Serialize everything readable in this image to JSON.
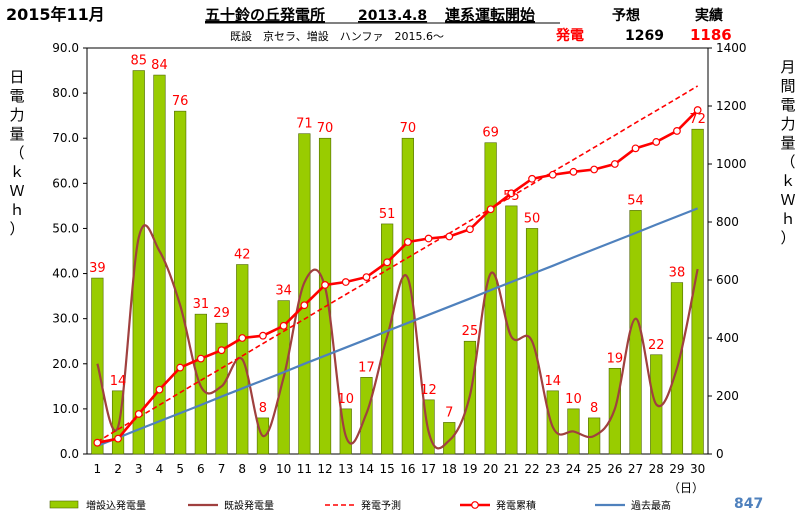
{
  "header": {
    "month": "2015年11月",
    "plant": "五十鈴の丘発電所",
    "start_date": "2013.4.8",
    "start_label": "連系運転開始",
    "forecast_label": "予想",
    "actual_label": "実績",
    "subtitle": "既設　京セラ、増設　ハンファ　2015.6～",
    "gen_label": "発電",
    "forecast_value": "1269",
    "actual_value": "1186"
  },
  "axes": {
    "y_left_label": [
      "日",
      "電",
      "力",
      "量",
      "（",
      "ｋ",
      "Ｗ",
      "ｈ",
      "）"
    ],
    "y_right_label": [
      "月",
      "間",
      "電",
      "力",
      "量",
      "（",
      "ｋ",
      "Ｗ",
      "ｈ",
      "）"
    ],
    "x_unit": "（日）",
    "y_left_ticks": [
      "0.0",
      "10.0",
      "20.0",
      "30.0",
      "40.0",
      "50.0",
      "60.0",
      "70.0",
      "80.0",
      "90.0"
    ],
    "y_right_ticks": [
      "0",
      "200",
      "400",
      "600",
      "800",
      "1000",
      "1200",
      "1400"
    ]
  },
  "footer": {
    "record_value": "847"
  },
  "colors": {
    "bar": "#99CC00",
    "bar_edge": "#4D6600",
    "existing": "#A0403F",
    "forecast": "#FF0000",
    "cumulative": "#FF0000",
    "record": "#4F81BD",
    "label_red": "#FF0000",
    "record_text": "#4F81BD"
  },
  "chart_data": {
    "type": "bar",
    "x": [
      1,
      2,
      3,
      4,
      5,
      6,
      7,
      8,
      9,
      10,
      11,
      12,
      13,
      14,
      15,
      16,
      17,
      18,
      19,
      20,
      21,
      22,
      23,
      24,
      25,
      26,
      27,
      28,
      29,
      30
    ],
    "ylim_left": [
      0,
      90
    ],
    "ylim_right": [
      0,
      1400
    ],
    "grid": false,
    "legend": "bottom",
    "series": [
      {
        "name": "増設込発電量",
        "type": "bar",
        "axis": "left",
        "values": [
          39,
          14,
          85,
          84,
          76,
          31,
          29,
          42,
          8,
          34,
          71,
          70,
          10,
          17,
          51,
          70,
          12,
          7,
          25,
          69,
          55,
          50,
          14,
          10,
          8,
          19,
          54,
          22,
          38,
          72
        ],
        "labels": [
          "39",
          "14",
          "85",
          "84",
          "76",
          "31",
          "29",
          "42",
          "8",
          "34",
          "71",
          "70",
          "10",
          "17",
          "51",
          "70",
          "12",
          "7",
          "25",
          "69",
          "55",
          "50",
          "14",
          "10",
          "8",
          "19",
          "54",
          "22",
          "38",
          "72"
        ]
      },
      {
        "name": "既設発電量",
        "type": "line",
        "axis": "left",
        "values": [
          20,
          6,
          48,
          45,
          33,
          15,
          15,
          21,
          4,
          17,
          38,
          37,
          4,
          9,
          26,
          39,
          5,
          3,
          13,
          40,
          26,
          25,
          6,
          5,
          4,
          10,
          30,
          11,
          19,
          41
        ]
      },
      {
        "name": "発電予測",
        "type": "line",
        "axis": "right",
        "values": [
          42,
          85,
          127,
          169,
          212,
          254,
          296,
          338,
          381,
          423,
          465,
          508,
          550,
          592,
          635,
          677,
          719,
          761,
          804,
          846,
          888,
          930,
          973,
          1015,
          1057,
          1099,
          1142,
          1184,
          1226,
          1269
        ]
      },
      {
        "name": "発電累積",
        "type": "line",
        "axis": "right",
        "values": [
          39,
          53,
          138,
          222,
          298,
          329,
          358,
          400,
          408,
          442,
          513,
          583,
          593,
          610,
          661,
          731,
          743,
          750,
          775,
          844,
          899,
          949,
          963,
          973,
          981,
          1000,
          1054,
          1076,
          1114,
          1186
        ]
      },
      {
        "name": "過去最高",
        "type": "line",
        "axis": "right",
        "values": [
          28,
          56,
          85,
          113,
          141,
          169,
          198,
          226,
          254,
          282,
          311,
          339,
          367,
          395,
          424,
          452,
          480,
          508,
          536,
          565,
          593,
          621,
          649,
          678,
          706,
          734,
          762,
          791,
          819,
          847
        ]
      }
    ]
  }
}
